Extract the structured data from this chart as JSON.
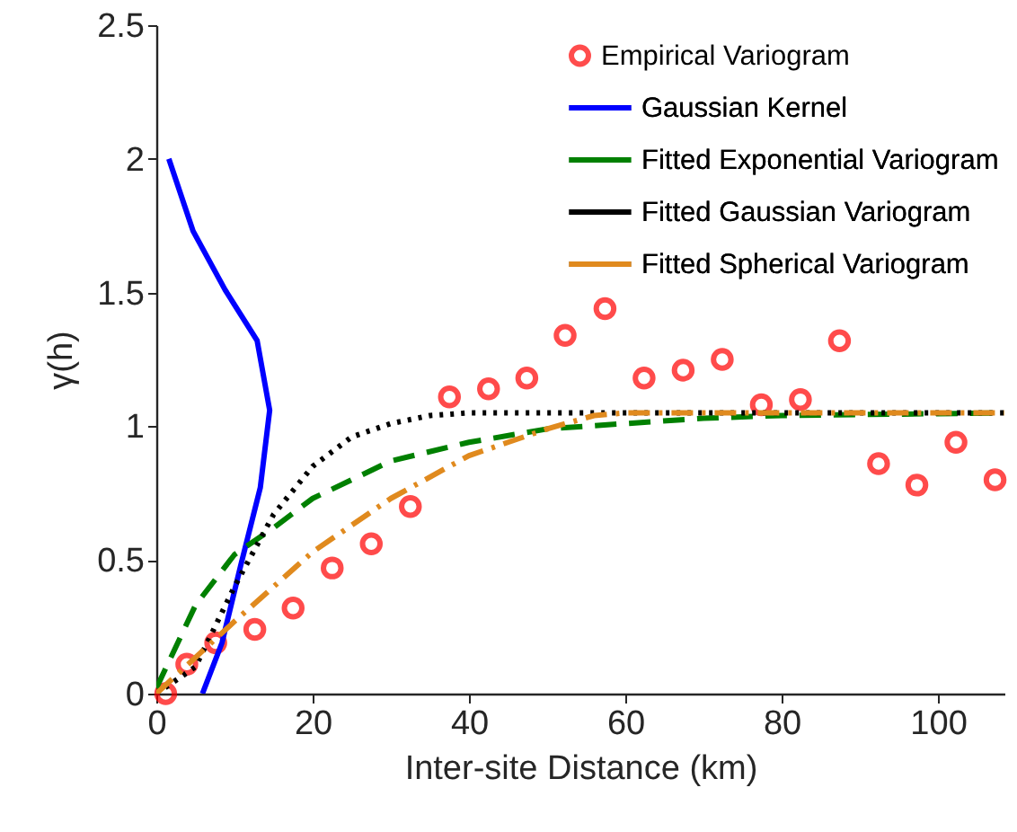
{
  "chart_data": {
    "type": "line",
    "xlabel": "Inter-site Distance (km)",
    "ylabel": "γ(h)",
    "xlim": [
      0,
      108.5
    ],
    "ylim": [
      0,
      2.5
    ],
    "xticks": [
      0,
      20,
      40,
      60,
      80,
      100
    ],
    "yticks": [
      0,
      0.5,
      1,
      1.5,
      2,
      2.5
    ],
    "grid": false,
    "legend": "top right",
    "series": [
      {
        "name": "Empirical Variogram",
        "type": "scatter",
        "marker": "circle",
        "color": "#ff0000",
        "x": [
          1.2,
          3.9,
          7.6,
          12.6,
          17.5,
          22.5,
          27.5,
          32.5,
          37.5,
          42.5,
          47.4,
          52.3,
          57.4,
          62.4,
          67.4,
          72.4,
          77.4,
          82.4,
          87.4,
          92.4,
          97.3,
          102.3,
          107.3
        ],
        "values": [
          0,
          0.11,
          0.19,
          0.24,
          0.32,
          0.47,
          0.56,
          0.7,
          1.11,
          1.14,
          1.18,
          1.34,
          1.44,
          1.18,
          1.21,
          1.25,
          1.08,
          1.1,
          1.32,
          0.86,
          0.78,
          0.94,
          0.8
        ]
      },
      {
        "name": "Gaussian Kernel",
        "line_style": "solid",
        "color": "#0000ff",
        "x": [
          1.6,
          4.7,
          8.8,
          12.9,
          14.5,
          13.3,
          10.8,
          8.4,
          5.9
        ],
        "values": [
          2,
          1.73,
          1.51,
          1.32,
          1.06,
          0.77,
          0.48,
          0.19,
          0
        ]
      },
      {
        "name": "Fitted Exponential Variogram",
        "line_style": "dashed",
        "color": "#008000",
        "x": [
          0,
          5,
          10,
          15,
          20,
          30,
          40,
          50,
          60,
          70,
          80,
          108.5
        ],
        "values": [
          0.02,
          0.33,
          0.52,
          0.62,
          0.73,
          0.87,
          0.94,
          0.99,
          1.01,
          1.03,
          1.04,
          1.05
        ]
      },
      {
        "name": "Fitted Gaussian Variogram",
        "line_style": "dotted",
        "color": "#000000",
        "x": [
          0,
          5,
          10,
          15,
          20,
          25,
          30,
          35,
          40,
          108.5
        ],
        "values": [
          0,
          0.1,
          0.4,
          0.67,
          0.85,
          0.96,
          1.01,
          1.04,
          1.05,
          1.05
        ]
      },
      {
        "name": "Fitted Spherical Variogram",
        "line_style": "dashdot",
        "color": "#e08a1e",
        "x": [
          0,
          10,
          20,
          30,
          40,
          50,
          56,
          60,
          108.5
        ],
        "values": [
          0,
          0.27,
          0.53,
          0.73,
          0.89,
          0.99,
          1.04,
          1.05,
          1.05
        ]
      }
    ]
  }
}
